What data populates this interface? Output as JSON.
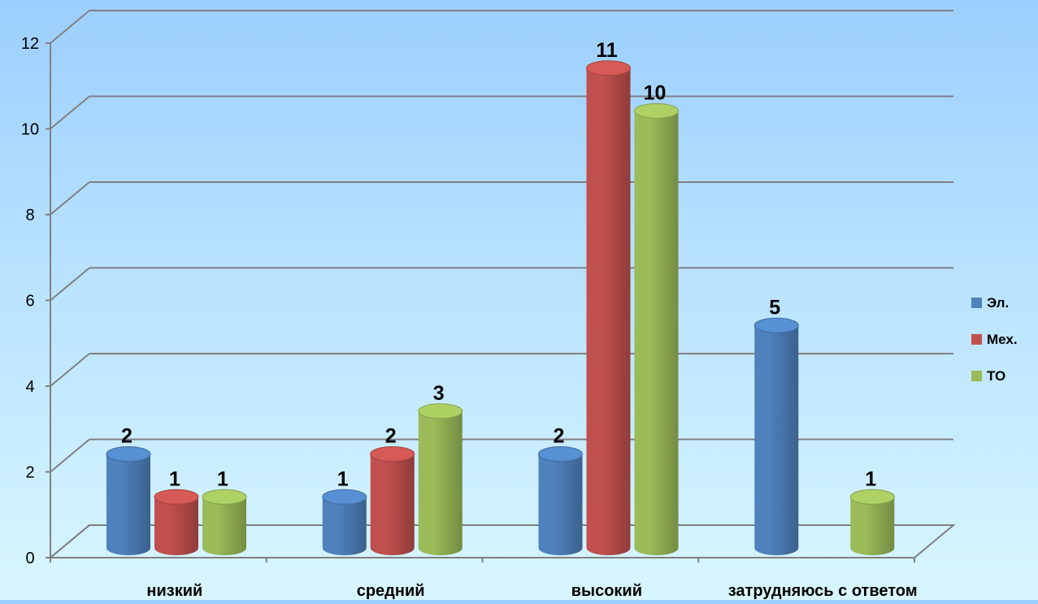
{
  "chart_data": {
    "type": "bar",
    "title": "",
    "xlabel": "",
    "ylabel": "",
    "categories": [
      "низкий",
      "средний",
      "высокий",
      "затрудняюсь с ответом"
    ],
    "series": [
      {
        "name": "Эл.",
        "values": [
          2,
          1,
          2,
          5
        ],
        "color": "#4f81bd"
      },
      {
        "name": "Мех.",
        "values": [
          1,
          2,
          11,
          null
        ],
        "color": "#c0504d"
      },
      {
        "name": "ТО",
        "values": [
          1,
          3,
          10,
          1
        ],
        "color": "#9bbb59"
      }
    ],
    "ylim": [
      0,
      12
    ],
    "yticks": [
      0,
      2,
      4,
      6,
      8,
      10,
      12
    ],
    "grid": true,
    "legend_position": "right",
    "three_d": true
  }
}
